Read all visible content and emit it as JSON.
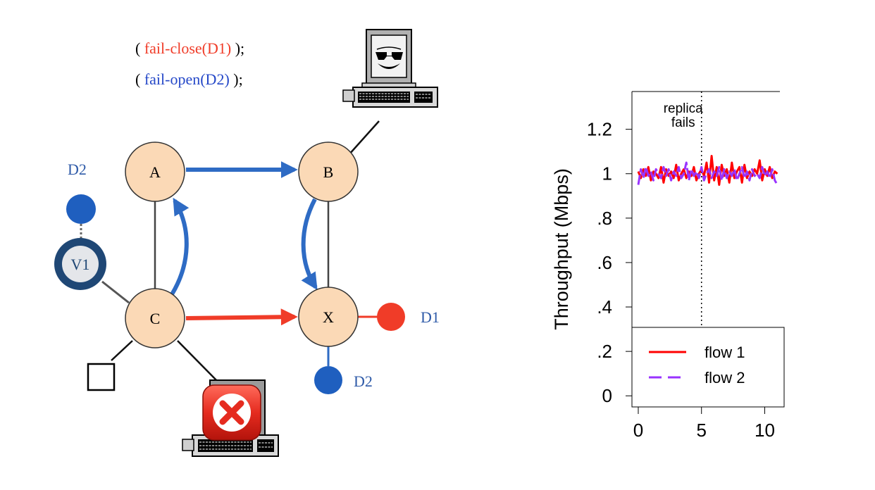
{
  "diagram": {
    "policy": {
      "line1": {
        "open": "( ",
        "call": "fail-close(D1)",
        "close": " );"
      },
      "line2": {
        "open": "( ",
        "call": "fail-open(D2)",
        "close": " );"
      }
    },
    "nodes": {
      "a": "A",
      "b": "B",
      "c": "C",
      "x": "X",
      "v1": "V1"
    },
    "labels": {
      "d2_top": "D2",
      "d1_right": "D1",
      "d2_bottom": "D2"
    },
    "icons": [
      "computer-terminal-icon",
      "smiley-face-icon",
      "failed-computer-icon",
      "close-x-icon"
    ],
    "colors": {
      "node_fill": "#fbd9b6",
      "fail_open": "#2e6bc4",
      "fail_close": "#f03c28",
      "v1_ring": "#1f4775",
      "dot_blue": "#1f5fbf"
    }
  },
  "chart_data": {
    "type": "line",
    "title": "",
    "xlabel": "",
    "ylabel": "Throughput (Mbps)",
    "xlim": [
      -0.5,
      11.2
    ],
    "ylim": [
      -0.05,
      1.37
    ],
    "x_ticks": [
      "0",
      "5",
      "10"
    ],
    "x_tick_values": [
      0,
      5,
      10
    ],
    "y_ticks": [
      "0",
      ".2",
      ".4",
      ".6",
      ".8",
      "1",
      "1.2"
    ],
    "y_tick_values": [
      0,
      0.2,
      0.4,
      0.6,
      0.8,
      1.0,
      1.2
    ],
    "annotation": {
      "line1": "replica",
      "line2": "fails",
      "x": 5
    },
    "series": [
      {
        "name": "flow 1",
        "color": "#ff0000",
        "style": "solid",
        "x": [
          0,
          0.2,
          0.4,
          0.6,
          0.8,
          1,
          1.2,
          1.4,
          1.6,
          1.8,
          2,
          2.2,
          2.4,
          2.6,
          2.8,
          3,
          3.2,
          3.4,
          3.6,
          3.8,
          4,
          4.2,
          4.4,
          4.6,
          4.8,
          5,
          5.2,
          5.4,
          5.6,
          5.8,
          6,
          6.2,
          6.4,
          6.6,
          6.8,
          7,
          7.2,
          7.4,
          7.6,
          7.8,
          8,
          8.2,
          8.4,
          8.6,
          8.8,
          9,
          9.2,
          9.4,
          9.6,
          9.8,
          10,
          10.2,
          10.4,
          10.6,
          10.8,
          11
        ],
        "y": [
          1.01,
          0.98,
          1.02,
          0.99,
          1.03,
          0.97,
          1.01,
          1.0,
          0.98,
          1.03,
          0.96,
          1.02,
          0.99,
          1.01,
          0.98,
          1.04,
          0.97,
          1.0,
          1.02,
          0.98,
          1.01,
          0.99,
          1.03,
          0.97,
          1.0,
          1.02,
          0.99,
          1.05,
          0.96,
          1.08,
          0.97,
          1.03,
          0.95,
          1.04,
          0.99,
          1.02,
          0.96,
          1.05,
          0.98,
          1.01,
          1.03,
          0.96,
          1.04,
          0.98,
          1.01,
          0.99,
          1.02,
          1.0,
          1.06,
          0.97,
          1.02,
          0.99,
          1.03,
          0.98,
          1.01,
          1.0
        ]
      },
      {
        "name": "flow 2",
        "color": "#9933ff",
        "style": "dashed",
        "x": [
          0,
          0.2,
          0.4,
          0.6,
          0.8,
          1,
          1.2,
          1.4,
          1.6,
          1.8,
          2,
          2.2,
          2.4,
          2.6,
          2.8,
          3,
          3.2,
          3.4,
          3.6,
          3.8,
          4,
          4.2,
          4.4,
          4.6,
          4.8,
          5,
          5.2,
          5.4,
          5.6,
          5.8,
          6,
          6.2,
          6.4,
          6.6,
          6.8,
          7,
          7.2,
          7.4,
          7.6,
          7.8,
          8,
          8.2,
          8.4,
          8.6,
          8.8,
          9,
          9.2,
          9.4,
          9.6,
          9.8,
          10,
          10.2,
          10.4,
          10.6,
          10.8,
          11
        ],
        "y": [
          0.95,
          1.02,
          0.98,
          1.03,
          0.99,
          1.01,
          0.97,
          1.02,
          1.0,
          0.98,
          1.03,
          0.99,
          1.02,
          0.97,
          1.01,
          0.99,
          1.03,
          0.98,
          1.0,
          1.05,
          0.97,
          1.02,
          0.99,
          1.01,
          0.98,
          1.03,
          0.97,
          1.0,
          1.02,
          0.98,
          1.01,
          0.99,
          1.03,
          0.97,
          1.02,
          0.98,
          1.01,
          0.99,
          1.02,
          0.97,
          1.0,
          1.03,
          0.98,
          1.01,
          0.97,
          1.02,
          0.99,
          1.0,
          0.98,
          1.03,
          0.99,
          1.01,
          0.98,
          1.02,
          0.97,
          0.95
        ]
      }
    ],
    "legend": {
      "entries": [
        "flow 1",
        "flow 2"
      ],
      "placement": "bottom-left"
    },
    "grid": false
  }
}
